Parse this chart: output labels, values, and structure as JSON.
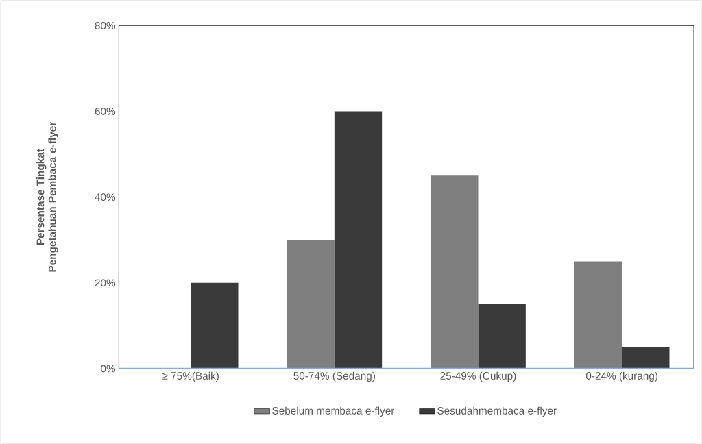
{
  "chart_data": {
    "type": "bar",
    "ylabel": "Persentase Tingkat Pengetahuan Pembaca e-flyer",
    "categories": [
      "≥ 75%(Baik)",
      "50-74% (Sedang)",
      "25-49% (Cukup)",
      "0-24% (kurang)"
    ],
    "series": [
      {
        "name": "Sebelum membaca e-flyer",
        "color": "#7f7f7f",
        "values": [
          0,
          30,
          45,
          25
        ]
      },
      {
        "name": "Sesudahmembaca e-flyer",
        "color": "#3a3a3a",
        "values": [
          20,
          60,
          15,
          5
        ]
      }
    ],
    "ylim": [
      0,
      80
    ],
    "yticks": [
      {
        "value": 0,
        "label": "0%"
      },
      {
        "value": 20,
        "label": "20%"
      },
      {
        "value": 40,
        "label": "40%"
      },
      {
        "value": 60,
        "label": "60%"
      },
      {
        "value": 80,
        "label": "80%"
      }
    ],
    "grid": false,
    "legend": "bottom"
  }
}
